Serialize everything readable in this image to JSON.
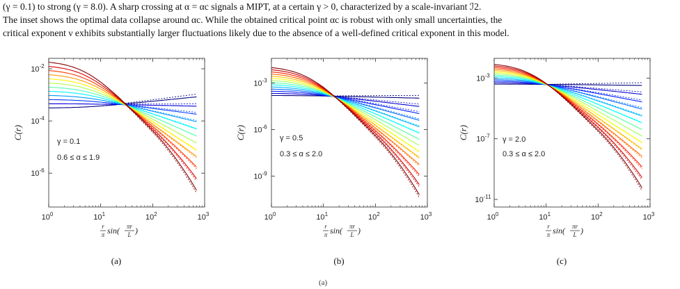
{
  "caption": {
    "line1": "(γ = 0.1) to strong (γ = 8.0). A sharp crossing at α = αc signals a MIPT, at a certain γ > 0, characterized by a scale-invariant ℐ2.",
    "line2": "The inset shows the optimal data collapse around αc. While the obtained critical point αc is robust with only small uncertainties, the",
    "line3": "critical exponent ν exhibits substantially larger fluctuations likely due to the absence of a well-defined critical exponent in this model."
  },
  "footer_mark": "(a)",
  "chart_data": [
    {
      "type": "line",
      "panel_label": "(a)",
      "gamma_label": "γ = 0.1",
      "alpha_label": "0.6 ≤ α ≤ 1.9",
      "ylabel": "C(r)",
      "xlabel": "r/π sin(πr/L)",
      "x_scale": "log",
      "y_scale": "log",
      "xlim": [
        1,
        1000
      ],
      "ylim_exp": [
        -7.3,
        -1.6
      ],
      "x_ticks": [
        "10^0",
        "10^1",
        "10^2",
        "10^3"
      ],
      "y_ticks": [
        "10^-6",
        "10^-4",
        "10^-2"
      ],
      "y_tick_exps": [
        -6,
        -4,
        -2
      ],
      "series_count": 12,
      "alpha_range": [
        0.6,
        1.9
      ],
      "y_start_exp": [
        -3.5,
        -1.75
      ],
      "y_end_exp": [
        -3.0,
        -6.9
      ],
      "knee_x": 5
    },
    {
      "type": "line",
      "panel_label": "(b)",
      "gamma_label": "γ = 0.5",
      "alpha_label": "0.3 ≤ α ≤ 2.0",
      "ylabel": "C(r)",
      "xlabel": "r/π sin(πr/L)",
      "x_scale": "log",
      "y_scale": "log",
      "xlim": [
        1,
        1000
      ],
      "ylim_exp": [
        -11,
        -1.4
      ],
      "x_ticks": [
        "10^0",
        "10^1",
        "10^2",
        "10^3"
      ],
      "y_ticks": [
        "10^-9",
        "10^-6",
        "10^-3"
      ],
      "y_tick_exps": [
        -9,
        -6,
        -3
      ],
      "series_count": 14,
      "alpha_range": [
        0.3,
        2.0
      ],
      "y_start_exp": [
        -3.8,
        -2.0
      ],
      "y_end_exp": [
        -4.0,
        -10.6
      ],
      "knee_x": 5
    },
    {
      "type": "line",
      "panel_label": "(c)",
      "gamma_label": "γ = 2.0",
      "alpha_label": "0.3 ≤ α ≤ 2.0",
      "ylabel": "C(r)",
      "xlabel": "r/π sin(πr/L)",
      "x_scale": "log",
      "y_scale": "log",
      "xlim": [
        1,
        1000
      ],
      "ylim_exp": [
        -11.5,
        -1.7
      ],
      "x_ticks": [
        "10^0",
        "10^1",
        "10^2",
        "10^3"
      ],
      "y_ticks": [
        "10^-11",
        "10^-7",
        "10^-3"
      ],
      "y_tick_exps": [
        -11,
        -7,
        -3
      ],
      "series_count": 14,
      "alpha_range": [
        0.3,
        2.0
      ],
      "y_start_exp": [
        -3.4,
        -2.1
      ],
      "y_end_exp": [
        -3.5,
        -10.6
      ],
      "knee_x": 5
    }
  ]
}
